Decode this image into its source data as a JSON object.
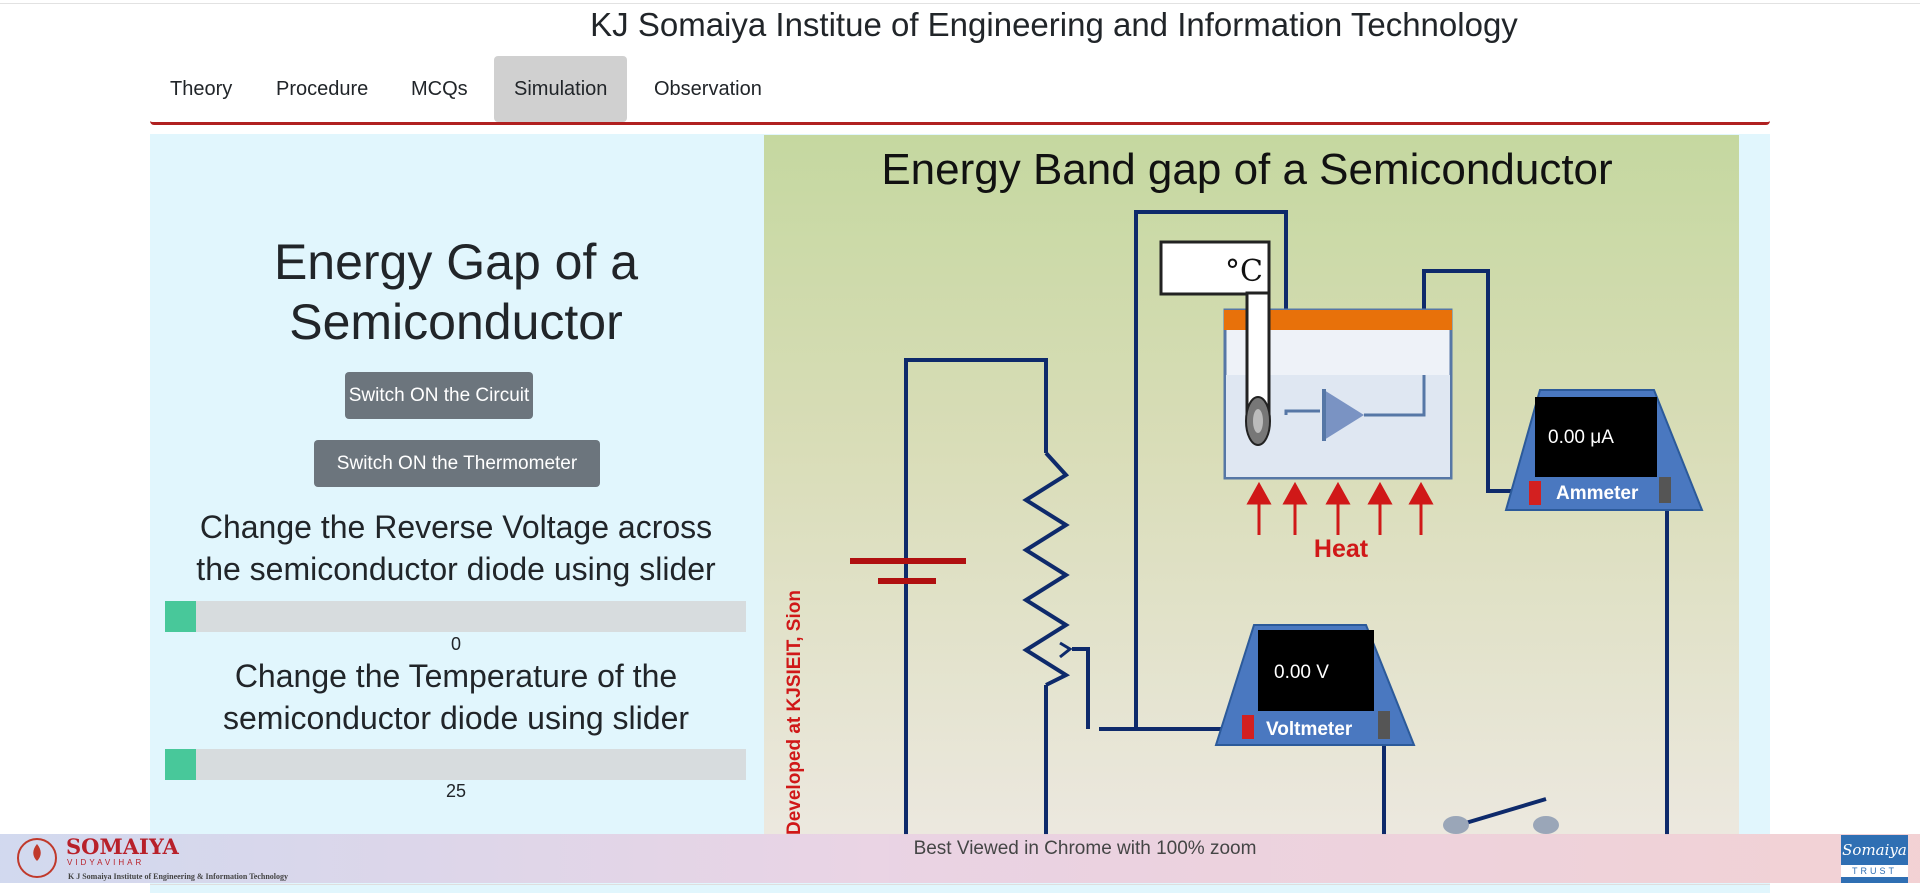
{
  "site": {
    "title": "KJ Somaiya Institue of Engineering and Information Technology"
  },
  "nav": {
    "tabs": [
      {
        "label": "Theory"
      },
      {
        "label": "Procedure"
      },
      {
        "label": "MCQs"
      },
      {
        "label": "Simulation",
        "active": true
      },
      {
        "label": "Observation"
      }
    ]
  },
  "left": {
    "title_line1": "Energy Gap of a",
    "title_line2": "Semiconductor",
    "btn_circuit": "Switch ON the Circuit",
    "btn_thermo": "Switch ON the Thermometer",
    "voltage_label_line1": "Change the Reverse Voltage across",
    "voltage_label_line2": "the semiconductor diode using slider",
    "voltage_value": "0",
    "temp_label_line1": "Change the Temperature of the",
    "temp_label_line2": "semiconductor diode using slider",
    "temp_value": "25"
  },
  "simulation": {
    "heading": "Energy Band gap of a Semiconductor",
    "thermometer_unit": "°C",
    "heat_label": "Heat",
    "ammeter_label": "Ammeter",
    "ammeter_reading": "0.00 μA",
    "voltmeter_label": "Voltmeter",
    "voltmeter_reading": "0.00 V",
    "credit": "Developed at KJSIEIT, Sion"
  },
  "footer": {
    "note": "Best Viewed in Chrome with 100% zoom",
    "logo_left_name": "SOMAIYA",
    "logo_left_sub": "VIDYAVIHAR",
    "logo_left_caption": "K J Somaiya Institute of Engineering & Information Technology",
    "logo_right_name": "Somaiya",
    "logo_right_sub": "TRUST"
  },
  "colors": {
    "accent_bar": "#b02020",
    "slider_thumb": "#48c89a",
    "button": "#6c757d",
    "panel_bg": "#e1f6fd",
    "heat": "#d01818",
    "instrument": "#4a78c0"
  }
}
